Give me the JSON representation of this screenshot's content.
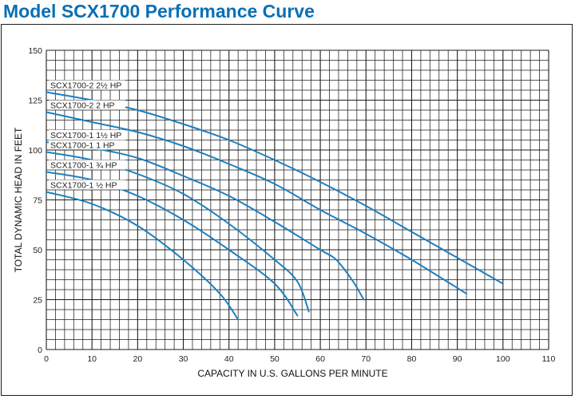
{
  "page_title": "Model SCX1700 Performance Curve",
  "chart_data": {
    "type": "line",
    "title": "Model SCX1700 Performance Curve",
    "xlabel": "CAPACITY IN U.S. GALLONS PER MINUTE",
    "ylabel": "TOTAL DYNAMIC HEAD IN FEET",
    "xlim": [
      0,
      110
    ],
    "ylim": [
      0,
      150
    ],
    "x_ticks": [
      0,
      10,
      20,
      30,
      40,
      50,
      60,
      70,
      80,
      90,
      100,
      110
    ],
    "y_ticks": [
      0,
      25,
      50,
      75,
      100,
      125,
      150
    ],
    "grid": true,
    "line_color": "#1d7fbf",
    "series": [
      {
        "name": "SCX1700-2  2½ HP",
        "x": [
          0,
          10,
          20,
          30,
          40,
          50,
          60,
          70,
          80,
          90,
          100
        ],
        "y": [
          129,
          125,
          120,
          113,
          105,
          95,
          84,
          72,
          59,
          46,
          33
        ]
      },
      {
        "name": "SCX1700-2  2 HP",
        "x": [
          0,
          10,
          20,
          30,
          40,
          50,
          60,
          70,
          80,
          92
        ],
        "y": [
          119,
          114,
          109,
          102,
          93,
          83,
          70,
          58,
          45,
          28
        ]
      },
      {
        "name": "SCX1700-1  1½ HP",
        "x": [
          0,
          10,
          20,
          30,
          40,
          50,
          60,
          63,
          65,
          67.5,
          69.5
        ],
        "y": [
          104,
          101,
          96,
          87,
          77,
          64,
          50,
          46,
          41,
          33,
          25
        ]
      },
      {
        "name": "SCX1700-1  1 HP",
        "x": [
          0,
          10,
          20,
          30,
          40,
          50,
          55,
          57.5
        ],
        "y": [
          99,
          95,
          88,
          78,
          63,
          45,
          34,
          19
        ]
      },
      {
        "name": "SCX1700-1  ¾ HP",
        "x": [
          0,
          10,
          20,
          30,
          40,
          50,
          55
        ],
        "y": [
          89,
          85,
          77,
          65,
          50,
          33,
          17
        ]
      },
      {
        "name": "SCX1700-1  ½ HP",
        "x": [
          0,
          10,
          20,
          30,
          38,
          42
        ],
        "y": [
          79,
          73,
          62,
          45,
          28,
          15
        ]
      }
    ]
  }
}
